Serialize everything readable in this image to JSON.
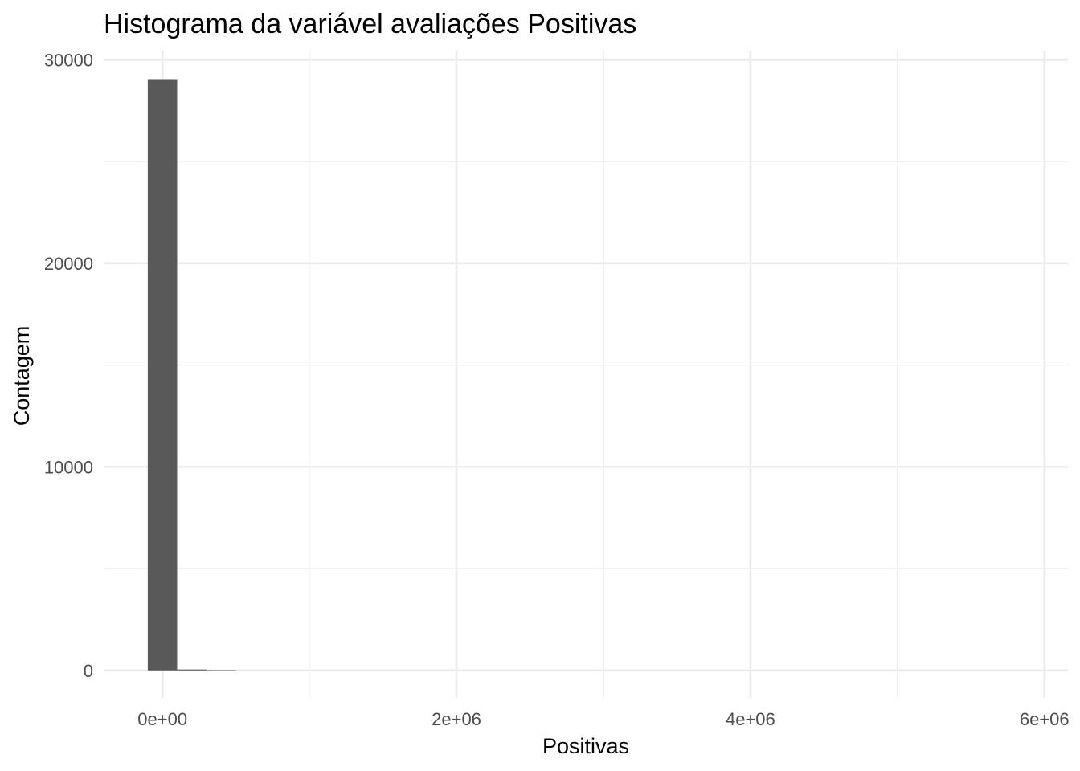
{
  "chart_data": {
    "type": "bar",
    "title": "Histograma da variável avaliações Positivas",
    "xlabel": "Positivas",
    "ylabel": "Contagem",
    "bin_width": 200000,
    "bins": [
      {
        "x_start": -100000,
        "x_end": 100000,
        "count": 29050
      },
      {
        "x_start": 100000,
        "x_end": 300000,
        "count": 45
      },
      {
        "x_start": 300000,
        "x_end": 500000,
        "count": 10
      }
    ],
    "xlim": [
      -400000,
      6160000
    ],
    "ylim": [
      -1350,
      30450
    ],
    "x_ticks": [
      0,
      2000000,
      4000000,
      6000000
    ],
    "x_tick_labels": [
      "0e+00",
      "2e+06",
      "4e+06",
      "6e+06"
    ],
    "y_ticks": [
      0,
      10000,
      20000,
      30000
    ],
    "y_tick_labels": [
      "0",
      "10000",
      "20000",
      "30000"
    ],
    "x_minor_ticks": [
      1000000,
      3000000,
      5000000
    ],
    "y_minor_ticks": [
      5000,
      15000,
      25000
    ],
    "grid": true,
    "bar_color": "#595959",
    "grid_color": "#ebebeb",
    "background": "#ffffff"
  }
}
